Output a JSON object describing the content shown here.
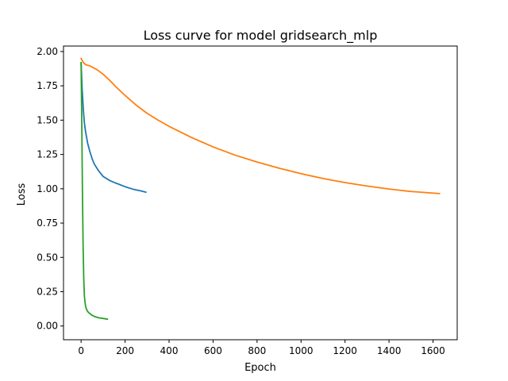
{
  "chart_data": {
    "type": "line",
    "title": "Loss curve for model gridsearch_mlp",
    "xlabel": "Epoch",
    "ylabel": "Loss",
    "xlim": [
      -80,
      1710
    ],
    "ylim": [
      -0.1,
      2.04
    ],
    "xticks": [
      0,
      200,
      400,
      600,
      800,
      1000,
      1200,
      1400,
      1600
    ],
    "yticks": [
      0.0,
      0.25,
      0.5,
      0.75,
      1.0,
      1.25,
      1.5,
      1.75,
      2.0
    ],
    "xtick_labels": [
      "0",
      "200",
      "400",
      "600",
      "800",
      "1000",
      "1200",
      "1400",
      "1600"
    ],
    "ytick_labels": [
      "0.00",
      "0.25",
      "0.50",
      "0.75",
      "1.00",
      "1.25",
      "1.50",
      "1.75",
      "2.00"
    ],
    "grid": false,
    "series": [
      {
        "color": "#1f77b4",
        "x": [
          0,
          5,
          10,
          15,
          20,
          30,
          40,
          50,
          60,
          80,
          100,
          130,
          160,
          200,
          240,
          270,
          295
        ],
        "y": [
          1.92,
          1.72,
          1.58,
          1.48,
          1.42,
          1.33,
          1.27,
          1.22,
          1.18,
          1.13,
          1.09,
          1.06,
          1.04,
          1.015,
          0.995,
          0.985,
          0.975
        ]
      },
      {
        "color": "#ff7f0e",
        "x": [
          0,
          10,
          20,
          40,
          70,
          100,
          130,
          160,
          200,
          250,
          300,
          350,
          400,
          500,
          600,
          700,
          800,
          900,
          1000,
          1100,
          1200,
          1300,
          1400,
          1500,
          1630
        ],
        "y": [
          1.95,
          1.92,
          1.905,
          1.895,
          1.87,
          1.835,
          1.79,
          1.74,
          1.68,
          1.61,
          1.55,
          1.5,
          1.455,
          1.375,
          1.305,
          1.245,
          1.195,
          1.15,
          1.11,
          1.075,
          1.045,
          1.02,
          0.998,
          0.98,
          0.965
        ]
      },
      {
        "color": "#2ca02c",
        "x": [
          0,
          3,
          6,
          9,
          12,
          15,
          18,
          21,
          25,
          30,
          40,
          50,
          60,
          80,
          100,
          120
        ],
        "y": [
          1.92,
          1.5,
          1.0,
          0.6,
          0.35,
          0.22,
          0.17,
          0.14,
          0.12,
          0.105,
          0.09,
          0.078,
          0.07,
          0.06,
          0.055,
          0.05
        ]
      }
    ]
  }
}
